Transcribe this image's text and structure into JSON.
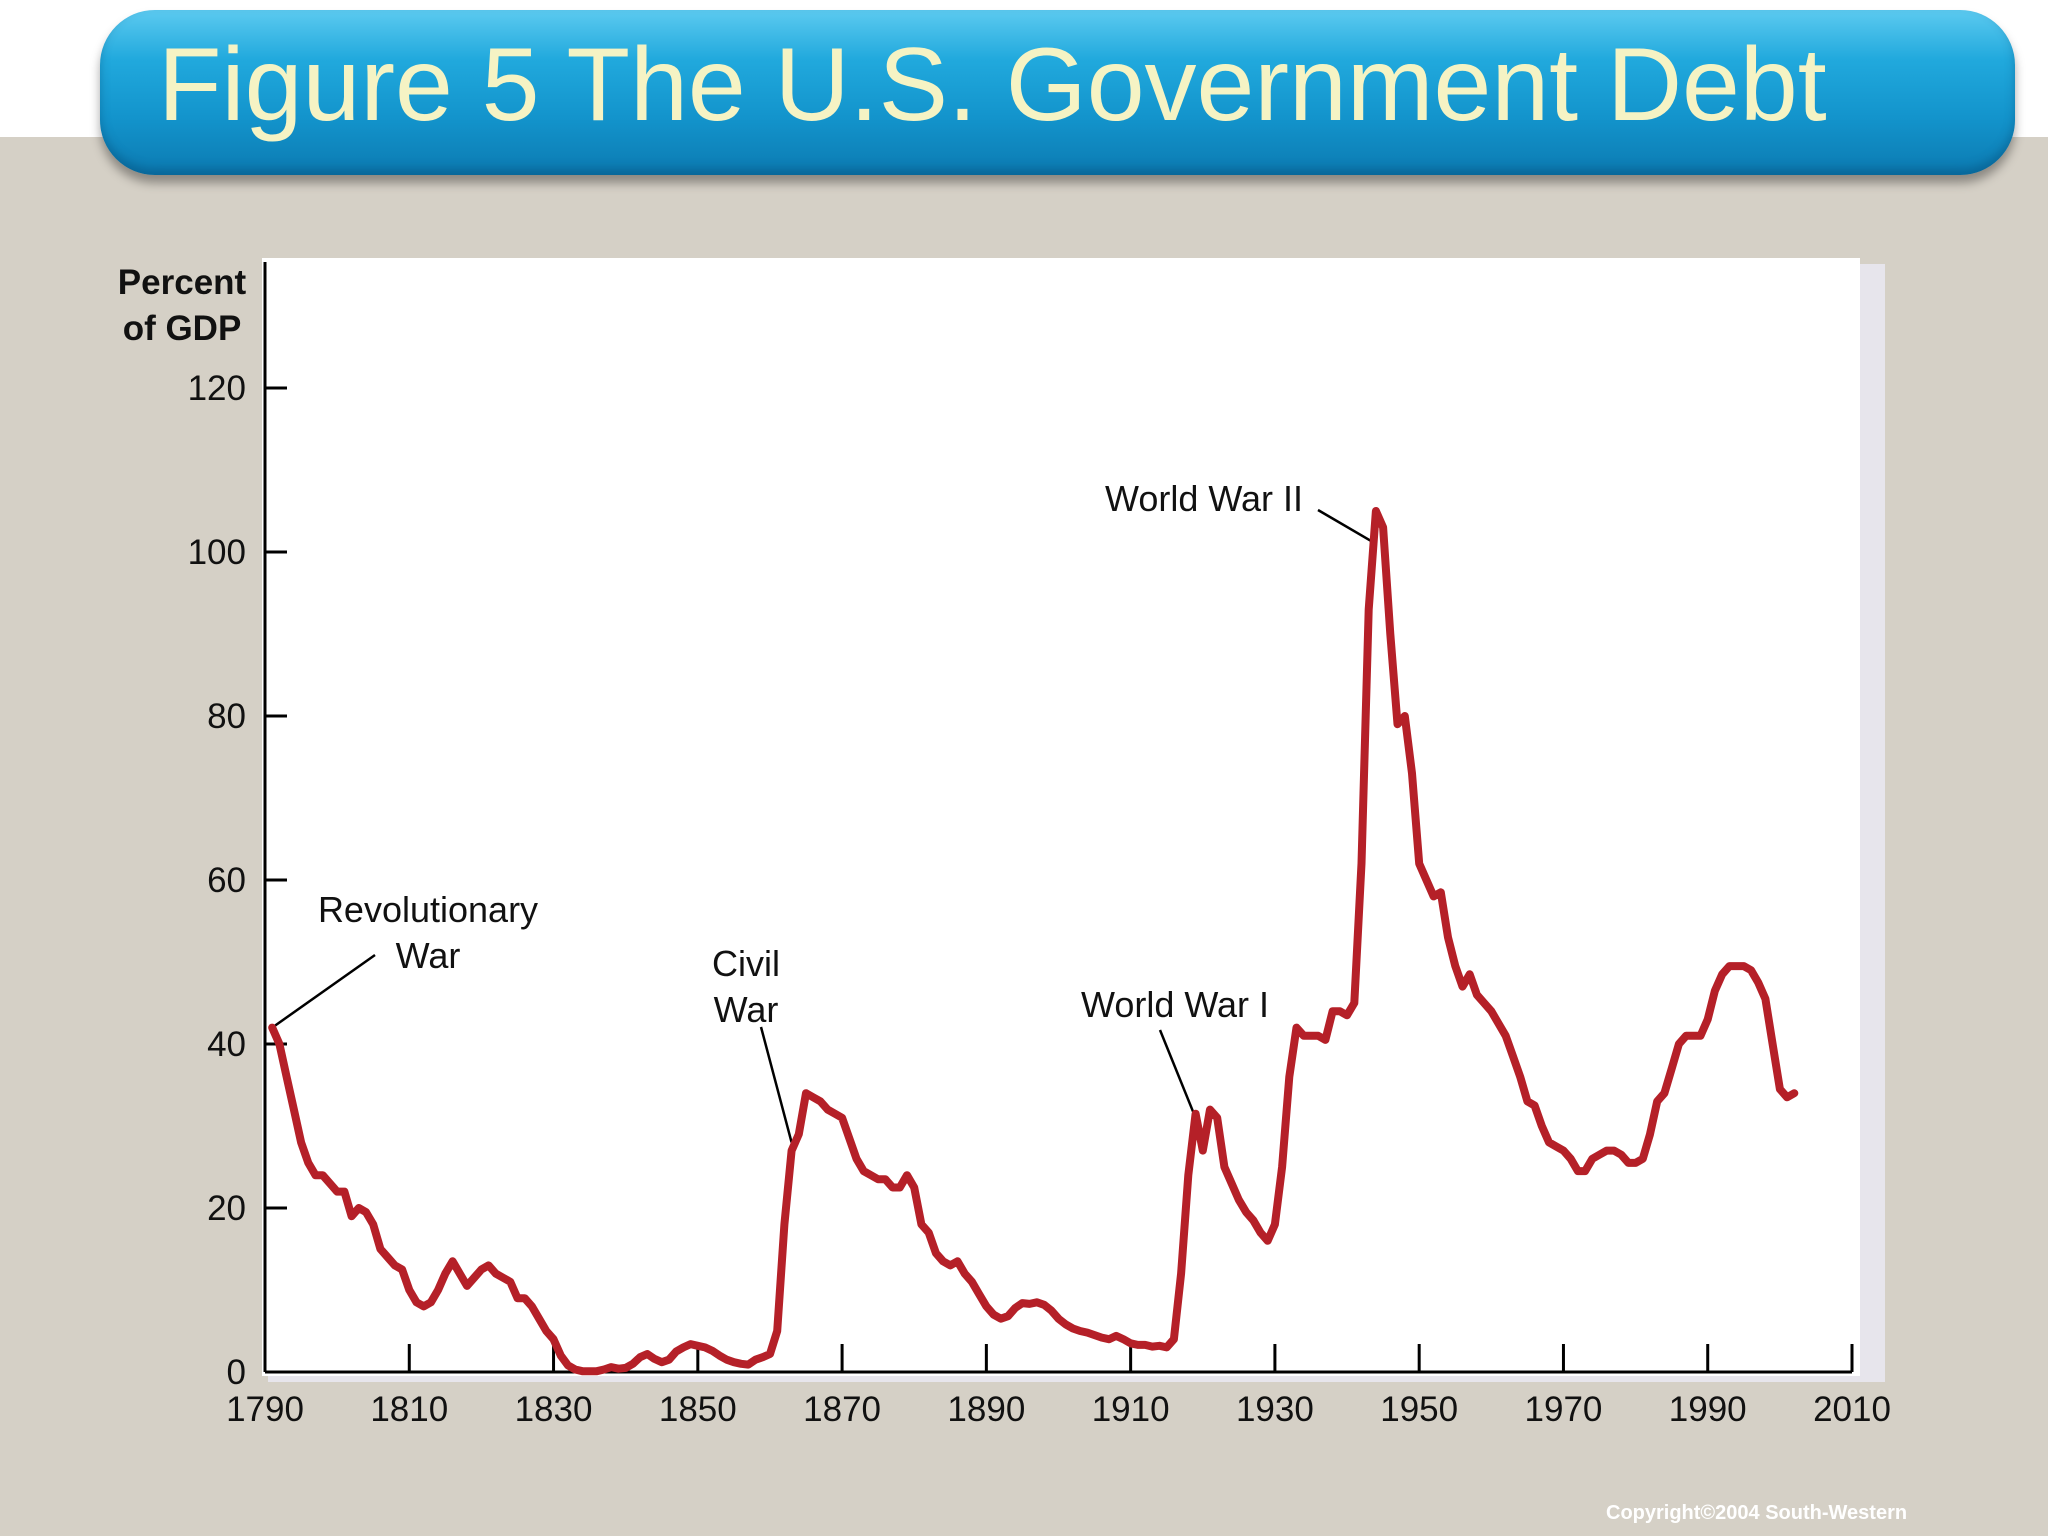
{
  "slide": {
    "title": "Figure 5 The U.S. Government Debt",
    "copyright": "Copyright©2004  South-Western",
    "title_color": "#f5f3c4",
    "title_bar_color": "#1a9fd6",
    "background_color": "#d5d0c6"
  },
  "chart_data": {
    "type": "line",
    "title": "",
    "ylabel_lines": [
      "Percent",
      "of GDP"
    ],
    "xlabel": "",
    "xlim": [
      1790,
      2010
    ],
    "ylim": [
      0,
      120
    ],
    "x_ticks": [
      1790,
      1810,
      1830,
      1850,
      1870,
      1890,
      1910,
      1930,
      1950,
      1970,
      1990,
      2010
    ],
    "y_ticks": [
      0,
      20,
      40,
      60,
      80,
      100,
      120
    ],
    "grid": false,
    "line_color": "#b52028",
    "series": [
      {
        "name": "",
        "points": [
          [
            1791,
            42
          ],
          [
            1792,
            40
          ],
          [
            1793,
            36
          ],
          [
            1794,
            32
          ],
          [
            1795,
            28
          ],
          [
            1796,
            25.5
          ],
          [
            1797,
            24
          ],
          [
            1798,
            24
          ],
          [
            1799,
            23
          ],
          [
            1800,
            22
          ],
          [
            1801,
            22
          ],
          [
            1802,
            19
          ],
          [
            1803,
            20
          ],
          [
            1804,
            19.5
          ],
          [
            1805,
            18
          ],
          [
            1806,
            15
          ],
          [
            1807,
            14
          ],
          [
            1808,
            13
          ],
          [
            1809,
            12.5
          ],
          [
            1810,
            10
          ],
          [
            1811,
            8.5
          ],
          [
            1812,
            8
          ],
          [
            1813,
            8.5
          ],
          [
            1814,
            10
          ],
          [
            1815,
            12
          ],
          [
            1816,
            13.5
          ],
          [
            1817,
            12
          ],
          [
            1818,
            10.5
          ],
          [
            1819,
            11.5
          ],
          [
            1820,
            12.5
          ],
          [
            1821,
            13
          ],
          [
            1822,
            12
          ],
          [
            1823,
            11.5
          ],
          [
            1824,
            11
          ],
          [
            1825,
            9
          ],
          [
            1826,
            9
          ],
          [
            1827,
            8
          ],
          [
            1828,
            6.5
          ],
          [
            1829,
            5
          ],
          [
            1830,
            4
          ],
          [
            1831,
            2
          ],
          [
            1832,
            0.8
          ],
          [
            1833,
            0.3
          ],
          [
            1834,
            0.1
          ],
          [
            1835,
            0.1
          ],
          [
            1836,
            0.1
          ],
          [
            1837,
            0.3
          ],
          [
            1838,
            0.6
          ],
          [
            1839,
            0.4
          ],
          [
            1840,
            0.5
          ],
          [
            1841,
            1
          ],
          [
            1842,
            1.8
          ],
          [
            1843,
            2.2
          ],
          [
            1844,
            1.6
          ],
          [
            1845,
            1.2
          ],
          [
            1846,
            1.5
          ],
          [
            1847,
            2.5
          ],
          [
            1848,
            3
          ],
          [
            1849,
            3.4
          ],
          [
            1850,
            3.2
          ],
          [
            1851,
            3.0
          ],
          [
            1852,
            2.6
          ],
          [
            1853,
            2
          ],
          [
            1854,
            1.5
          ],
          [
            1855,
            1.2
          ],
          [
            1856,
            1.0
          ],
          [
            1857,
            0.9
          ],
          [
            1858,
            1.5
          ],
          [
            1859,
            1.8
          ],
          [
            1860,
            2.2
          ],
          [
            1861,
            5
          ],
          [
            1862,
            18
          ],
          [
            1863,
            27
          ],
          [
            1864,
            29
          ],
          [
            1865,
            34
          ],
          [
            1866,
            33.5
          ],
          [
            1867,
            33
          ],
          [
            1868,
            32
          ],
          [
            1869,
            31.5
          ],
          [
            1870,
            31
          ],
          [
            1871,
            28.5
          ],
          [
            1872,
            26
          ],
          [
            1873,
            24.5
          ],
          [
            1874,
            24
          ],
          [
            1875,
            23.5
          ],
          [
            1876,
            23.5
          ],
          [
            1877,
            22.5
          ],
          [
            1878,
            22.5
          ],
          [
            1879,
            24
          ],
          [
            1880,
            22.5
          ],
          [
            1881,
            18
          ],
          [
            1882,
            17
          ],
          [
            1883,
            14.5
          ],
          [
            1884,
            13.5
          ],
          [
            1885,
            13
          ],
          [
            1886,
            13.5
          ],
          [
            1887,
            12
          ],
          [
            1888,
            11
          ],
          [
            1889,
            9.5
          ],
          [
            1890,
            8
          ],
          [
            1891,
            7
          ],
          [
            1892,
            6.5
          ],
          [
            1893,
            6.8
          ],
          [
            1894,
            7.8
          ],
          [
            1895,
            8.4
          ],
          [
            1896,
            8.3
          ],
          [
            1897,
            8.5
          ],
          [
            1898,
            8.2
          ],
          [
            1899,
            7.5
          ],
          [
            1900,
            6.5
          ],
          [
            1901,
            5.8
          ],
          [
            1902,
            5.3
          ],
          [
            1903,
            5.0
          ],
          [
            1904,
            4.8
          ],
          [
            1905,
            4.5
          ],
          [
            1906,
            4.2
          ],
          [
            1907,
            4.0
          ],
          [
            1908,
            4.4
          ],
          [
            1909,
            4.0
          ],
          [
            1910,
            3.5
          ],
          [
            1911,
            3.3
          ],
          [
            1912,
            3.3
          ],
          [
            1913,
            3.1
          ],
          [
            1914,
            3.2
          ],
          [
            1915,
            3.0
          ],
          [
            1916,
            4
          ],
          [
            1917,
            12
          ],
          [
            1918,
            24
          ],
          [
            1919,
            31.5
          ],
          [
            1920,
            27
          ],
          [
            1921,
            32
          ],
          [
            1922,
            31
          ],
          [
            1923,
            25
          ],
          [
            1924,
            23
          ],
          [
            1925,
            21
          ],
          [
            1926,
            19.5
          ],
          [
            1927,
            18.5
          ],
          [
            1928,
            17
          ],
          [
            1929,
            16
          ],
          [
            1930,
            18
          ],
          [
            1931,
            25
          ],
          [
            1932,
            36
          ],
          [
            1933,
            42
          ],
          [
            1934,
            41
          ],
          [
            1935,
            41
          ],
          [
            1936,
            41
          ],
          [
            1937,
            40.5
          ],
          [
            1938,
            44
          ],
          [
            1939,
            44
          ],
          [
            1940,
            43.5
          ],
          [
            1941,
            45
          ],
          [
            1942,
            62
          ],
          [
            1943,
            93
          ],
          [
            1944,
            105
          ],
          [
            1945,
            103
          ],
          [
            1946,
            90
          ],
          [
            1947,
            79
          ],
          [
            1948,
            80
          ],
          [
            1949,
            73
          ],
          [
            1950,
            62
          ],
          [
            1951,
            60
          ],
          [
            1952,
            58
          ],
          [
            1953,
            58.5
          ],
          [
            1954,
            53
          ],
          [
            1955,
            49.5
          ],
          [
            1956,
            47
          ],
          [
            1957,
            48.5
          ],
          [
            1958,
            46
          ],
          [
            1959,
            45
          ],
          [
            1960,
            44
          ],
          [
            1961,
            42.5
          ],
          [
            1962,
            41
          ],
          [
            1963,
            38.5
          ],
          [
            1964,
            36
          ],
          [
            1965,
            33
          ],
          [
            1966,
            32.5
          ],
          [
            1967,
            30
          ],
          [
            1968,
            28
          ],
          [
            1969,
            27.5
          ],
          [
            1970,
            27
          ],
          [
            1971,
            26
          ],
          [
            1972,
            24.5
          ],
          [
            1973,
            24.5
          ],
          [
            1974,
            26
          ],
          [
            1975,
            26.5
          ],
          [
            1976,
            27
          ],
          [
            1977,
            27
          ],
          [
            1978,
            26.5
          ],
          [
            1979,
            25.5
          ],
          [
            1980,
            25.5
          ],
          [
            1981,
            26
          ],
          [
            1982,
            29
          ],
          [
            1983,
            33
          ],
          [
            1984,
            34
          ],
          [
            1985,
            37
          ],
          [
            1986,
            40
          ],
          [
            1987,
            41
          ],
          [
            1988,
            41
          ],
          [
            1989,
            41
          ],
          [
            1990,
            43
          ],
          [
            1991,
            46.5
          ],
          [
            1992,
            48.5
          ],
          [
            1993,
            49.5
          ],
          [
            1994,
            49.5
          ],
          [
            1995,
            49.5
          ],
          [
            1996,
            49
          ],
          [
            1997,
            47.5
          ],
          [
            1998,
            45.5
          ],
          [
            1999,
            40
          ],
          [
            2000,
            34.5
          ],
          [
            2001,
            33.5
          ],
          [
            2002,
            34
          ]
        ]
      }
    ],
    "annotations": [
      {
        "lines": [
          "Revolutionary",
          "War"
        ],
        "year": 1791,
        "value": 42
      },
      {
        "lines": [
          "Civil",
          "War"
        ],
        "year": 1863,
        "value": 28
      },
      {
        "lines": [
          "World War I"
        ],
        "year": 1919,
        "value": 31
      },
      {
        "lines": [
          "World War II"
        ],
        "year": 1944,
        "value": 101
      }
    ]
  }
}
